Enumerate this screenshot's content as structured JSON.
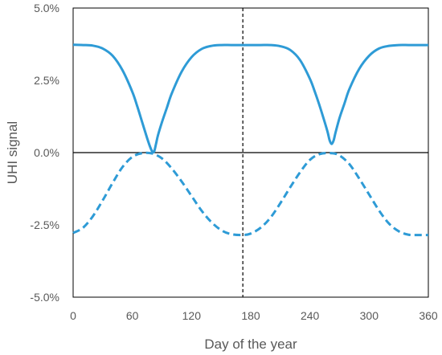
{
  "chart_data": {
    "type": "line",
    "xlabel": "Day of the year",
    "ylabel": "UHI signal",
    "xlim": [
      0,
      360
    ],
    "ylim": [
      -5.0,
      5.0
    ],
    "x_ticks": [
      0,
      60,
      120,
      180,
      240,
      300,
      360
    ],
    "x_tick_labels": [
      "0",
      "60",
      "120",
      "180",
      "240",
      "300",
      "360"
    ],
    "y_ticks": [
      5.0,
      2.5,
      0.0,
      -2.5,
      -5.0
    ],
    "y_tick_labels": [
      "5.0%",
      "2.5%",
      "0.0%",
      "-2.5%",
      "-5.0%"
    ],
    "grid": false,
    "reference_lines": {
      "horizontal_y": 0.0,
      "vertical_dashed_x": 172
    },
    "colors": {
      "series": "#2E9BD6",
      "axis": "#000000",
      "text": "#595959"
    },
    "series": [
      {
        "style": "solid",
        "x": [
          0,
          10,
          20,
          30,
          40,
          50,
          60,
          65,
          70,
          75,
          78,
          80,
          82,
          84,
          86,
          90,
          95,
          100,
          110,
          120,
          130,
          140,
          150,
          160,
          170,
          180,
          190,
          200,
          210,
          220,
          230,
          240,
          245,
          250,
          255,
          258,
          260,
          262,
          264,
          266,
          270,
          275,
          280,
          290,
          300,
          310,
          320,
          330,
          340,
          350,
          360
        ],
        "y": [
          3.73,
          3.72,
          3.7,
          3.6,
          3.35,
          2.85,
          2.1,
          1.6,
          1.05,
          0.5,
          0.2,
          0.05,
          0.03,
          0.3,
          0.6,
          1.05,
          1.55,
          2.05,
          2.8,
          3.3,
          3.58,
          3.69,
          3.72,
          3.72,
          3.72,
          3.72,
          3.72,
          3.72,
          3.68,
          3.55,
          3.2,
          2.55,
          2.1,
          1.6,
          1.05,
          0.7,
          0.42,
          0.3,
          0.42,
          0.7,
          1.2,
          1.7,
          2.2,
          2.9,
          3.35,
          3.6,
          3.69,
          3.72,
          3.72,
          3.72,
          3.72
        ]
      },
      {
        "style": "dashed",
        "x": [
          0,
          10,
          20,
          30,
          40,
          50,
          60,
          70,
          80,
          90,
          100,
          110,
          120,
          130,
          140,
          150,
          160,
          172,
          180,
          190,
          200,
          210,
          220,
          230,
          240,
          250,
          262,
          270,
          280,
          290,
          300,
          310,
          320,
          330,
          340,
          350,
          360
        ],
        "y": [
          -2.78,
          -2.6,
          -2.2,
          -1.65,
          -1.05,
          -0.5,
          -0.15,
          -0.02,
          -0.03,
          -0.2,
          -0.55,
          -1.0,
          -1.5,
          -2.0,
          -2.4,
          -2.68,
          -2.82,
          -2.85,
          -2.8,
          -2.6,
          -2.25,
          -1.75,
          -1.2,
          -0.68,
          -0.25,
          -0.05,
          -0.02,
          -0.1,
          -0.4,
          -0.9,
          -1.45,
          -2.0,
          -2.45,
          -2.72,
          -2.84,
          -2.85,
          -2.85
        ]
      }
    ]
  }
}
